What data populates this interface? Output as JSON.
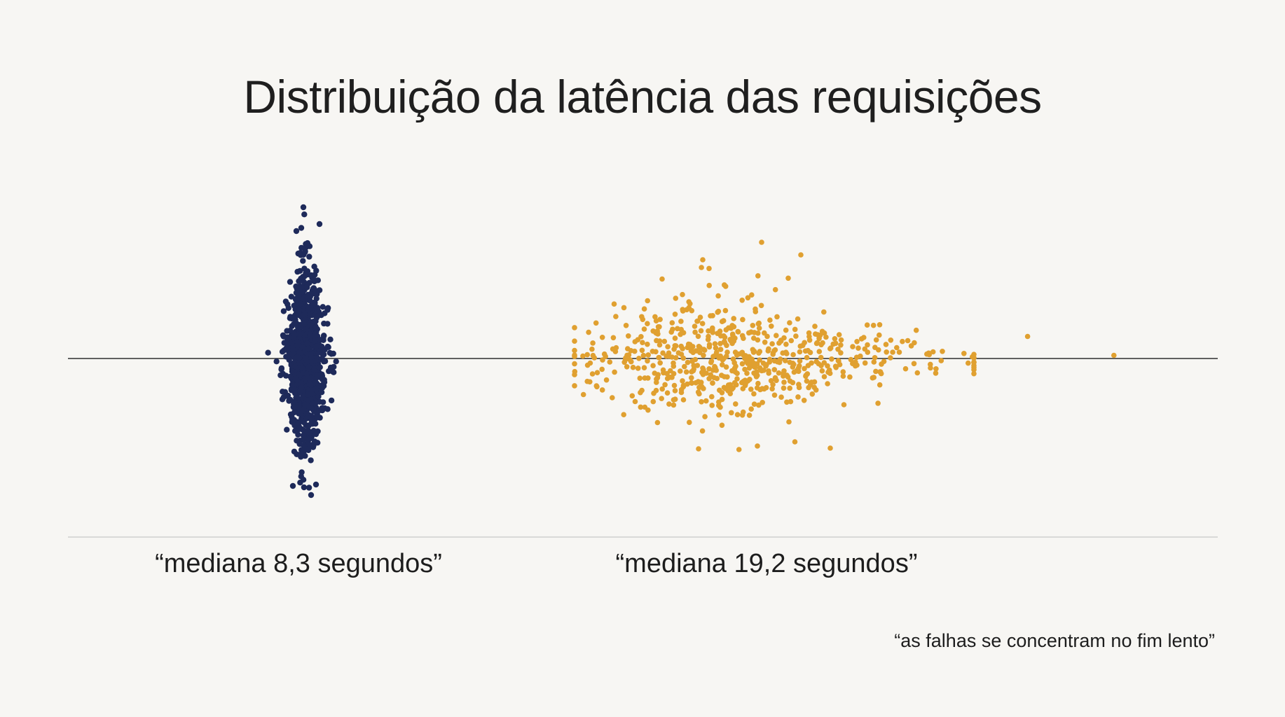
{
  "chart_data": {
    "type": "scatter",
    "title": "Distribuição da latência das requisições",
    "xlabel": "",
    "ylabel": "",
    "grid": false,
    "legend": "none",
    "baseline": true,
    "series": [
      {
        "color": "#1e2a5a",
        "median_label": "“mediana 8,3 segundos”",
        "median": 8.3,
        "count": 900,
        "x_range": [
          7.6,
          9.0
        ],
        "spread_range": [
          -1.0,
          1.0
        ],
        "distribution": "narrow symmetric cluster"
      },
      {
        "color": "#e0a030",
        "median_label": "“mediana 19,2 segundos”",
        "median": 19.2,
        "count": 650,
        "x_range": [
          12.0,
          34.0
        ],
        "spread_range": [
          -0.8,
          0.8
        ],
        "distribution": "wide cluster with long right tail",
        "outliers": [
          {
            "x": 25.8,
            "y": 0.1
          },
          {
            "x": 27.2,
            "y": -0.15
          },
          {
            "x": 30.8,
            "y": 0.35
          },
          {
            "x": 34.0,
            "y": 0.05
          },
          {
            "x": 26.6,
            "y": 0.25
          },
          {
            "x": 25.1,
            "y": -0.3
          }
        ]
      }
    ],
    "annotation": "“as falhas se concentram no fim lento”"
  }
}
